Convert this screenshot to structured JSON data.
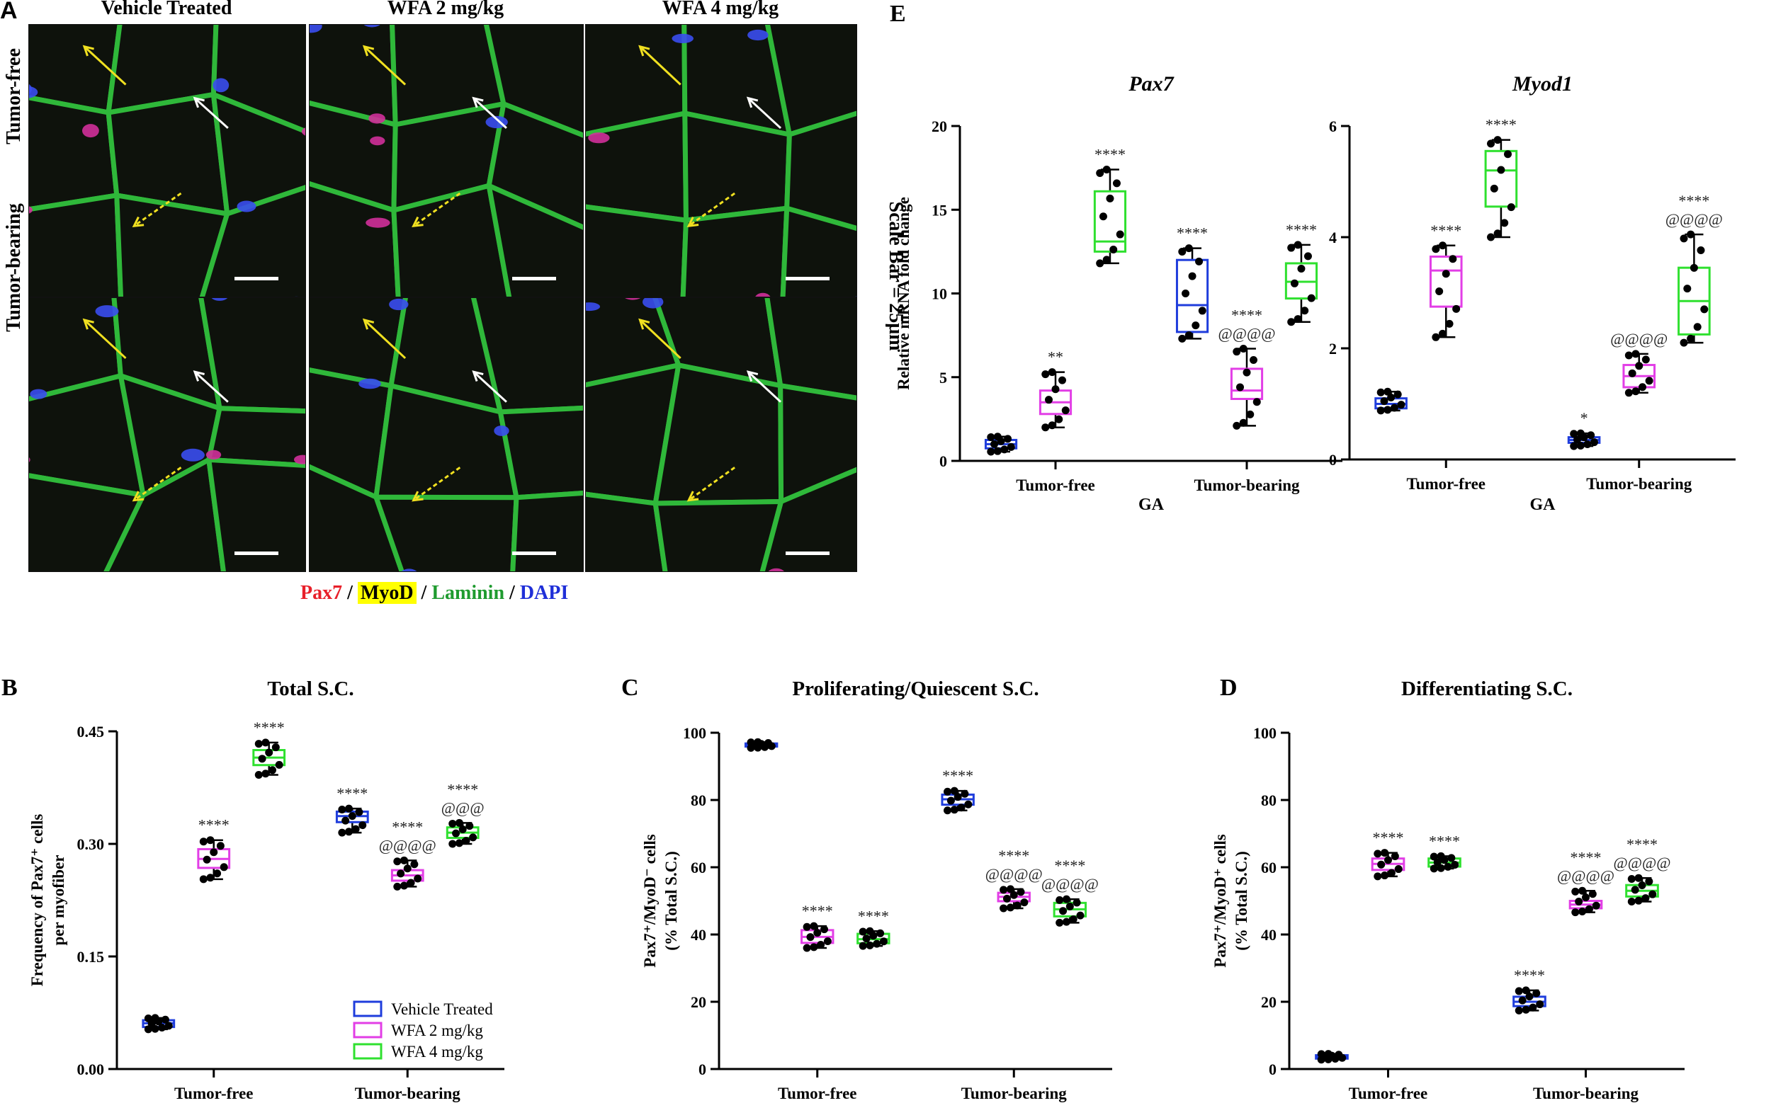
{
  "panel_a": {
    "letter": "A",
    "columns": [
      "Vehicle Treated",
      "WFA 2 mg/kg",
      "WFA 4 mg/kg"
    ],
    "rows": [
      "Tumor-free",
      "Tumor-bearing"
    ],
    "scale_bar": "Scale Bar = 25μm",
    "stain_legend": [
      {
        "text": "Pax7",
        "color": "#e8202a"
      },
      {
        "text": " / ",
        "color": "#000000"
      },
      {
        "text": "MyoD",
        "color": "#000000",
        "highlight": "#ffff00"
      },
      {
        "text": " / ",
        "color": "#000000"
      },
      {
        "text": "Laminin",
        "color": "#1f9b2f"
      },
      {
        "text": " / ",
        "color": "#000000"
      },
      {
        "text": "DAPI",
        "color": "#1f2fd8"
      }
    ],
    "image_colors": {
      "background": "#0a0d08",
      "membrane": "#2fb83a",
      "nucleus": "#3a4ef0",
      "pax7": "#d0309a"
    }
  },
  "series_colors": {
    "Vehicle Treated": "#1f3ddc",
    "WFA 2 mg/kg": "#e23ee6",
    "WFA 4 mg/kg": "#2fe02f"
  },
  "legend": [
    "Vehicle Treated",
    "WFA 2 mg/kg",
    "WFA 4 mg/kg"
  ],
  "chart_data": [
    {
      "id": "B",
      "type": "box",
      "letter": "B",
      "title": "Total S.C.",
      "ylabel": "Frequency of Pax7+ cells per myofiber",
      "ylabel_lines": [
        "Frequency of Pax7⁺ cells",
        "per myofiber"
      ],
      "ylim": [
        0,
        0.45
      ],
      "yticks": [
        "0.00",
        "0.15",
        "0.30",
        "0.45"
      ],
      "ytick_values": [
        0,
        0.15,
        0.3,
        0.45
      ],
      "categories": [
        "Tumor-free",
        "Tumor-bearing"
      ],
      "xlabel": "",
      "show_legend": true,
      "legend_placement": "bottom-right",
      "groups": [
        {
          "category": "Tumor-free",
          "series": "Vehicle Treated",
          "median": 0.061,
          "q1": 0.056,
          "q3": 0.065,
          "min": 0.053,
          "max": 0.068,
          "annotations": []
        },
        {
          "category": "Tumor-free",
          "series": "WFA 2 mg/kg",
          "median": 0.28,
          "q1": 0.268,
          "q3": 0.293,
          "min": 0.253,
          "max": 0.305,
          "annotations": [
            "****"
          ]
        },
        {
          "category": "Tumor-free",
          "series": "WFA 4 mg/kg",
          "median": 0.415,
          "q1": 0.405,
          "q3": 0.425,
          "min": 0.392,
          "max": 0.435,
          "annotations": [
            "****"
          ]
        },
        {
          "category": "Tumor-bearing",
          "series": "Vehicle Treated",
          "median": 0.337,
          "q1": 0.329,
          "q3": 0.343,
          "min": 0.315,
          "max": 0.347,
          "annotations": [
            "****"
          ]
        },
        {
          "category": "Tumor-bearing",
          "series": "WFA 2 mg/kg",
          "median": 0.258,
          "q1": 0.251,
          "q3": 0.265,
          "min": 0.243,
          "max": 0.278,
          "annotations": [
            "****",
            "@@@@"
          ]
        },
        {
          "category": "Tumor-bearing",
          "series": "WFA 4 mg/kg",
          "median": 0.315,
          "q1": 0.308,
          "q3": 0.322,
          "min": 0.3,
          "max": 0.328,
          "annotations": [
            "****",
            "@@@"
          ]
        }
      ]
    },
    {
      "id": "C",
      "type": "box",
      "letter": "C",
      "title": "Proliferating/Quiescent S.C.",
      "ylabel": "Pax7+/MyoD- cells (% Total S.C.)",
      "ylabel_lines": [
        "Pax7⁺/MyoD⁻ cells",
        "(% Total S.C.)"
      ],
      "ylim": [
        0,
        100
      ],
      "yticks": [
        "0",
        "20",
        "40",
        "60",
        "80",
        "100"
      ],
      "ytick_values": [
        0,
        20,
        40,
        60,
        80,
        100
      ],
      "categories": [
        "Tumor-free",
        "Tumor-bearing"
      ],
      "xlabel": "",
      "show_legend": false,
      "groups": [
        {
          "category": "Tumor-free",
          "series": "Vehicle Treated",
          "median": 96.3,
          "q1": 95.9,
          "q3": 96.8,
          "min": 95.5,
          "max": 97.2,
          "annotations": []
        },
        {
          "category": "Tumor-free",
          "series": "WFA 2 mg/kg",
          "median": 39.3,
          "q1": 37.5,
          "q3": 41.3,
          "min": 36.0,
          "max": 42.5,
          "annotations": [
            "****"
          ]
        },
        {
          "category": "Tumor-free",
          "series": "WFA 4 mg/kg",
          "median": 38.6,
          "q1": 37.4,
          "q3": 40.2,
          "min": 36.6,
          "max": 41.0,
          "annotations": [
            "****"
          ]
        },
        {
          "category": "Tumor-bearing",
          "series": "Vehicle Treated",
          "median": 80.2,
          "q1": 78.6,
          "q3": 81.6,
          "min": 76.9,
          "max": 82.7,
          "annotations": [
            "****"
          ]
        },
        {
          "category": "Tumor-bearing",
          "series": "WFA 2 mg/kg",
          "median": 51.2,
          "q1": 49.9,
          "q3": 52.4,
          "min": 47.8,
          "max": 53.5,
          "annotations": [
            "****",
            "@@@@"
          ]
        },
        {
          "category": "Tumor-bearing",
          "series": "WFA 4 mg/kg",
          "median": 47.5,
          "q1": 45.4,
          "q3": 49.4,
          "min": 43.5,
          "max": 50.5,
          "annotations": [
            "****",
            "@@@@"
          ]
        }
      ]
    },
    {
      "id": "D",
      "type": "box",
      "letter": "D",
      "title": "Differentiating S.C.",
      "ylabel": "Pax7+/MyoD+ cells (% Total S.C.)",
      "ylabel_lines": [
        "Pax7⁺/MyoD⁺ cells",
        "(% Total S.C.)"
      ],
      "ylim": [
        0,
        100
      ],
      "yticks": [
        "0",
        "20",
        "40",
        "60",
        "80",
        "100"
      ],
      "ytick_values": [
        0,
        20,
        40,
        60,
        80,
        100
      ],
      "categories": [
        "Tumor-free",
        "Tumor-bearing"
      ],
      "xlabel": "",
      "show_legend": false,
      "groups": [
        {
          "category": "Tumor-free",
          "series": "Vehicle Treated",
          "median": 3.6,
          "q1": 3.1,
          "q3": 4.1,
          "min": 2.8,
          "max": 4.5,
          "annotations": []
        },
        {
          "category": "Tumor-free",
          "series": "WFA 2 mg/kg",
          "median": 61.0,
          "q1": 59.2,
          "q3": 62.6,
          "min": 57.3,
          "max": 64.3,
          "annotations": [
            "****"
          ]
        },
        {
          "category": "Tumor-free",
          "series": "WFA 4 mg/kg",
          "median": 61.4,
          "q1": 60.2,
          "q3": 62.6,
          "min": 59.6,
          "max": 63.3,
          "annotations": [
            "****"
          ]
        },
        {
          "category": "Tumor-bearing",
          "series": "Vehicle Treated",
          "median": 20.0,
          "q1": 18.7,
          "q3": 21.5,
          "min": 17.4,
          "max": 23.4,
          "annotations": [
            "****"
          ]
        },
        {
          "category": "Tumor-bearing",
          "series": "WFA 2 mg/kg",
          "median": 48.9,
          "q1": 47.8,
          "q3": 50.0,
          "min": 46.6,
          "max": 53.0,
          "annotations": [
            "****",
            "@@@@"
          ]
        },
        {
          "category": "Tumor-bearing",
          "series": "WFA 4 mg/kg",
          "median": 53.0,
          "q1": 51.3,
          "q3": 54.7,
          "min": 49.8,
          "max": 56.8,
          "annotations": [
            "****",
            "@@@@"
          ]
        }
      ]
    },
    {
      "id": "E1",
      "type": "box",
      "letter": "E",
      "title": "Pax7",
      "title_italic": true,
      "ylabel": "Relative mRNA fold change",
      "ylabel_lines": [
        "Relative mRNA fold change"
      ],
      "ylim": [
        0,
        20
      ],
      "yticks": [
        "0",
        "5",
        "10",
        "15",
        "20"
      ],
      "ytick_values": [
        0,
        5,
        10,
        15,
        20
      ],
      "categories": [
        "Tumor-free",
        "Tumor-bearing"
      ],
      "xlabel": "GA",
      "show_legend": false,
      "groups": [
        {
          "category": "Tumor-free",
          "series": "Vehicle Treated",
          "median": 1.0,
          "q1": 0.75,
          "q3": 1.25,
          "min": 0.55,
          "max": 1.45,
          "annotations": []
        },
        {
          "category": "Tumor-free",
          "series": "WFA 2 mg/kg",
          "median": 3.5,
          "q1": 2.8,
          "q3": 4.2,
          "min": 2.0,
          "max": 5.3,
          "annotations": [
            "**"
          ]
        },
        {
          "category": "Tumor-free",
          "series": "WFA 4 mg/kg",
          "median": 13.1,
          "q1": 12.5,
          "q3": 16.1,
          "min": 11.8,
          "max": 17.4,
          "annotations": [
            "****"
          ]
        },
        {
          "category": "Tumor-bearing",
          "series": "Vehicle Treated",
          "median": 9.3,
          "q1": 7.7,
          "q3": 12.0,
          "min": 7.3,
          "max": 12.7,
          "annotations": [
            "****"
          ]
        },
        {
          "category": "Tumor-bearing",
          "series": "WFA 2 mg/kg",
          "median": 4.2,
          "q1": 3.7,
          "q3": 5.5,
          "min": 2.1,
          "max": 6.7,
          "annotations": [
            "****",
            "@@@@"
          ]
        },
        {
          "category": "Tumor-bearing",
          "series": "WFA 4 mg/kg",
          "median": 10.7,
          "q1": 9.7,
          "q3": 11.8,
          "min": 8.3,
          "max": 12.9,
          "annotations": [
            "****"
          ]
        }
      ]
    },
    {
      "id": "E2",
      "type": "box",
      "letter": "",
      "title": "Myod1",
      "title_italic": true,
      "ylabel": "",
      "ylabel_lines": [],
      "ylim": [
        0,
        6
      ],
      "yticks": [
        "0",
        "2",
        "4",
        "6"
      ],
      "ytick_values": [
        0,
        2,
        4,
        6
      ],
      "categories": [
        "Tumor-free",
        "Tumor-bearing"
      ],
      "xlabel": "GA",
      "show_legend": false,
      "groups": [
        {
          "category": "Tumor-free",
          "series": "Vehicle Treated",
          "median": 1.0,
          "q1": 0.92,
          "q3": 1.1,
          "min": 0.88,
          "max": 1.22,
          "annotations": []
        },
        {
          "category": "Tumor-free",
          "series": "WFA 2 mg/kg",
          "median": 3.4,
          "q1": 2.75,
          "q3": 3.65,
          "min": 2.2,
          "max": 3.85,
          "annotations": [
            "****"
          ]
        },
        {
          "category": "Tumor-free",
          "series": "WFA 4 mg/kg",
          "median": 5.2,
          "q1": 4.55,
          "q3": 5.55,
          "min": 4.0,
          "max": 5.75,
          "annotations": [
            "****"
          ]
        },
        {
          "category": "Tumor-bearing",
          "series": "Vehicle Treated",
          "median": 0.35,
          "q1": 0.3,
          "q3": 0.4,
          "min": 0.24,
          "max": 0.47,
          "annotations": [
            "*"
          ]
        },
        {
          "category": "Tumor-bearing",
          "series": "WFA 2 mg/kg",
          "median": 1.5,
          "q1": 1.3,
          "q3": 1.7,
          "min": 1.2,
          "max": 1.9,
          "annotations": [
            "@@@@"
          ]
        },
        {
          "category": "Tumor-bearing",
          "series": "WFA 4 mg/kg",
          "median": 2.85,
          "q1": 2.25,
          "q3": 3.45,
          "min": 2.1,
          "max": 4.05,
          "annotations": [
            "****",
            "@@@@"
          ]
        }
      ]
    }
  ]
}
